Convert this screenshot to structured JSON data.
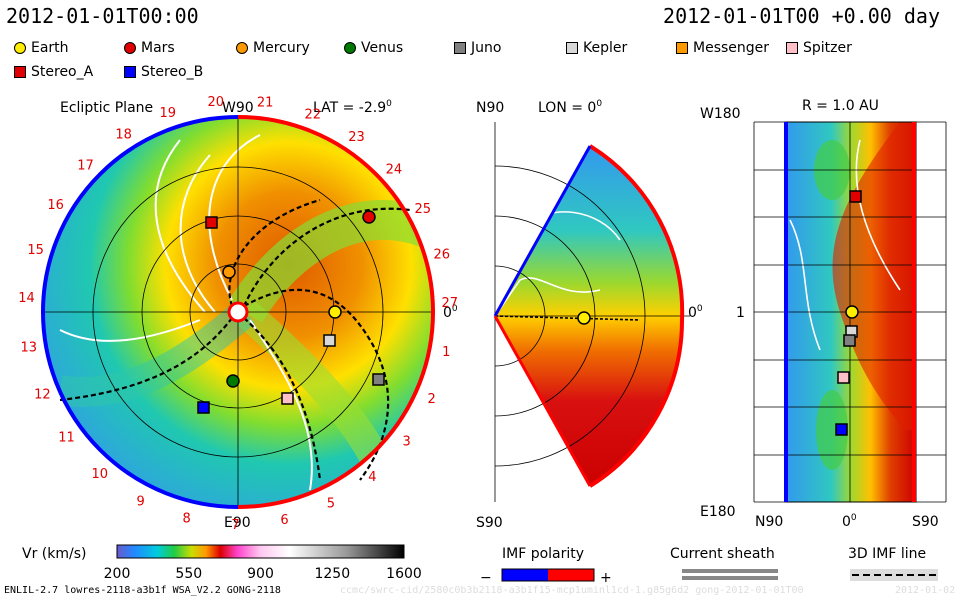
{
  "header": {
    "datetime_left": "2012-01-01T00:00",
    "datetime_right": "2012-01-01T00 +0.00 day"
  },
  "legend": [
    {
      "name": "Earth",
      "shape": "circle",
      "color": "#ffee00"
    },
    {
      "name": "Mars",
      "shape": "circle",
      "color": "#e00000"
    },
    {
      "name": "Mercury",
      "shape": "circle",
      "color": "#ff9900"
    },
    {
      "name": "Venus",
      "shape": "circle",
      "color": "#007a00"
    },
    {
      "name": "Juno",
      "shape": "square",
      "color": "#808080"
    },
    {
      "name": "Kepler",
      "shape": "square",
      "color": "#d8d8d8"
    },
    {
      "name": "Messenger",
      "shape": "square",
      "color": "#ff9900"
    },
    {
      "name": "Spitzer",
      "shape": "square",
      "color": "#ffc0c8"
    },
    {
      "name": "Stereo_A",
      "shape": "square",
      "color": "#e00000"
    },
    {
      "name": "Stereo_B",
      "shape": "square",
      "color": "#0000ff"
    }
  ],
  "panels": {
    "ecliptic": {
      "title": "Ecliptic Plane",
      "top": "W90",
      "bottom": "E90",
      "lat": "LAT = -2.9",
      "lat_deg": "0",
      "right": "0",
      "right_deg": "0"
    },
    "meridional": {
      "top": "N90",
      "bottom": "S90",
      "lon": "LON = 0",
      "lon_deg": "0",
      "right": "0",
      "right_deg": "0"
    },
    "latlon": {
      "title": "R = 1.0 AU",
      "top_left": "W180",
      "bottom_left": "E180",
      "mid_left": "1",
      "xtick_left": "N90",
      "xtick_mid": "0",
      "xtick_mid_deg": "0",
      "xtick_right": "S90"
    }
  },
  "carrington_labels": [
    "19",
    "20",
    "21",
    "22",
    "23",
    "24",
    "25",
    "26",
    "27",
    "1",
    "2",
    "3",
    "4",
    "5",
    "6",
    "7",
    "8",
    "9",
    "10",
    "11",
    "12",
    "13",
    "14",
    "15",
    "16",
    "17",
    "18"
  ],
  "colorbar": {
    "label": "Vr (km/s)",
    "ticks": [
      "200",
      "550",
      "900",
      "1250",
      "1600"
    ],
    "min": 200,
    "max": 1600
  },
  "imf": {
    "label": "IMF polarity",
    "minus": "−",
    "plus": "+",
    "neg_color": "#0000ff",
    "pos_color": "#ff0000"
  },
  "sheath": {
    "label": "Current sheath"
  },
  "imf3d": {
    "label": "3D IMF line"
  },
  "footer": {
    "model": "ENLIL-2.7 lowres-2118-a3b1f WSA_V2.2 GONG-2118",
    "watermark": "ccmc/swrc-cid/2580c0b3b2118-a3b1f15-mcp1uminl1cd-1.g85g6d2 gong-2012-01-01T00",
    "date_stamp": "2012-01-02"
  },
  "chart_data": {
    "type": "heatmap",
    "quantity": "Vr (km/s)",
    "color_range": [
      200,
      1600
    ],
    "objects_ecliptic_deg_from_earth": [
      {
        "name": "Earth",
        "angle": 0,
        "r_au": 1.0
      },
      {
        "name": "Mars",
        "angle": 65,
        "r_au": 1.47
      },
      {
        "name": "Mercury",
        "angle": 105,
        "r_au": 0.35
      },
      {
        "name": "Venus",
        "angle": -105,
        "r_au": 0.72
      },
      {
        "name": "Juno",
        "angle": -25,
        "r_au": 1.6
      },
      {
        "name": "Kepler",
        "angle": -20,
        "r_au": 1.0
      },
      {
        "name": "Spitzer",
        "angle": -65,
        "r_au": 1.0
      },
      {
        "name": "Stereo_A",
        "angle": 107,
        "r_au": 0.97
      },
      {
        "name": "Stereo_B",
        "angle": -110,
        "r_au": 1.0
      }
    ]
  }
}
